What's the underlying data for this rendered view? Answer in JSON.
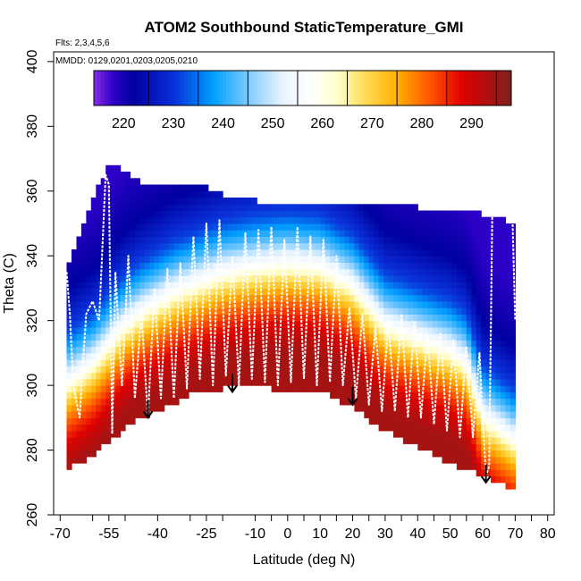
{
  "chart_data": {
    "type": "heatmap",
    "title": "ATOM2 Southbound StaticTemperature_GMI",
    "flights_note": "Flts: 2,3,4,5,6",
    "dates_note": "MMDD: 0129,0201,0203,0205,0210",
    "xlabel": "Latitude (deg N)",
    "ylabel": "Theta (C)",
    "xlim": [
      -72,
      82
    ],
    "ylim": [
      260,
      403
    ],
    "x_ticks": [
      -70,
      -60,
      -55,
      -50,
      -40,
      -30,
      -25,
      -20,
      -10,
      -5,
      0,
      5,
      10,
      15,
      20,
      25,
      30,
      35,
      40,
      45,
      50,
      55,
      60,
      65,
      70,
      75,
      80
    ],
    "x_tick_labels": [
      {
        "value": -70,
        "label": "-70"
      },
      {
        "value": -55,
        "label": "-55"
      },
      {
        "value": -40,
        "label": "-40"
      },
      {
        "value": -25,
        "label": "-25"
      },
      {
        "value": -10,
        "label": "-10"
      },
      {
        "value": 0,
        "label": "0"
      },
      {
        "value": 10,
        "label": "10"
      },
      {
        "value": 20,
        "label": "20"
      },
      {
        "value": 30,
        "label": "30"
      },
      {
        "value": 40,
        "label": "40"
      },
      {
        "value": 50,
        "label": "50"
      },
      {
        "value": 60,
        "label": "60"
      },
      {
        "value": 70,
        "label": "70"
      },
      {
        "value": 80,
        "label": "80"
      }
    ],
    "y_ticks": [
      260,
      280,
      300,
      320,
      340,
      360,
      380,
      400
    ],
    "colorbar": {
      "range": [
        214,
        298
      ],
      "tick_values": [
        220,
        230,
        240,
        250,
        260,
        270,
        280,
        290
      ],
      "color_stops": [
        {
          "t": 214,
          "c": "#8a2be2"
        },
        {
          "t": 218,
          "c": "#2d00c8"
        },
        {
          "t": 222,
          "c": "#0000a0"
        },
        {
          "t": 230,
          "c": "#0a2fd8"
        },
        {
          "t": 238,
          "c": "#00a0ff"
        },
        {
          "t": 246,
          "c": "#8fd0ff"
        },
        {
          "t": 252,
          "c": "#e8f4ff"
        },
        {
          "t": 258,
          "c": "#ffffff"
        },
        {
          "t": 263,
          "c": "#ffffcc"
        },
        {
          "t": 268,
          "c": "#ffe060"
        },
        {
          "t": 275,
          "c": "#ffb000"
        },
        {
          "t": 282,
          "c": "#ff5000"
        },
        {
          "t": 288,
          "c": "#e00000"
        },
        {
          "t": 298,
          "c": "#802020"
        }
      ]
    },
    "field": {
      "boundary": {
        "lat": [
          -68,
          -60,
          -55,
          -45,
          -40,
          -30,
          -20,
          -10,
          0,
          10,
          20,
          30,
          40,
          50,
          60,
          70
        ],
        "bottom": [
          274,
          278,
          283,
          290,
          292,
          297,
          299,
          300,
          298,
          299,
          293,
          286,
          281,
          276,
          272,
          268
        ],
        "top": [
          336,
          356,
          368,
          362,
          360,
          362,
          358,
          356,
          356,
          356,
          356,
          356,
          354,
          353,
          352,
          349
        ]
      },
      "tropopause_theta": {
        "lat": [
          -68,
          -60,
          -55,
          -50,
          -45,
          -40,
          -35,
          -30,
          -25,
          -20,
          -10,
          0,
          10,
          20,
          25,
          30,
          40,
          50,
          55,
          60,
          70
        ],
        "theta": [
          300,
          306,
          312,
          318,
          322,
          325,
          328,
          330,
          332,
          334,
          336,
          337,
          336,
          330,
          324,
          318,
          314,
          310,
          306,
          290,
          282
        ]
      },
      "levels": [
        {
          "dtheta": -26,
          "temp": 294
        },
        {
          "dtheta": -20,
          "temp": 290
        },
        {
          "dtheta": -14,
          "temp": 284
        },
        {
          "dtheta": -8,
          "temp": 276
        },
        {
          "dtheta": -3,
          "temp": 266
        },
        {
          "dtheta": 2,
          "temp": 256
        },
        {
          "dtheta": 8,
          "temp": 244
        },
        {
          "dtheta": 16,
          "temp": 232
        },
        {
          "dtheta": 30,
          "temp": 222
        },
        {
          "dtheta": 50,
          "temp": 218
        }
      ]
    },
    "flight_track": {
      "lat": [
        -68,
        -67,
        -66,
        -64,
        -62,
        -60,
        -58,
        -56,
        -55,
        -54,
        -53,
        -51,
        -49,
        -47,
        -45,
        -43,
        -41,
        -39,
        -37,
        -35,
        -33,
        -31,
        -29,
        -27,
        -25,
        -23,
        -21,
        -19,
        -17,
        -15,
        -13,
        -11,
        -9,
        -7,
        -5,
        -3,
        -1,
        1,
        3,
        5,
        7,
        9,
        11,
        13,
        15,
        17,
        19,
        21,
        23,
        25,
        27,
        29,
        31,
        33,
        35,
        37,
        39,
        41,
        43,
        45,
        47,
        49,
        51,
        53,
        55,
        57,
        59,
        61,
        62,
        63,
        65,
        67,
        69,
        70
      ],
      "theta": [
        335,
        322,
        300,
        290,
        322,
        326,
        320,
        365,
        362,
        285,
        335,
        300,
        340,
        296,
        322,
        290,
        330,
        296,
        336,
        296,
        338,
        299,
        346,
        302,
        350,
        300,
        351,
        303,
        340,
        300,
        347,
        302,
        348,
        301,
        349,
        300,
        345,
        301,
        349,
        302,
        346,
        300,
        345,
        301,
        340,
        300,
        324,
        296,
        322,
        294,
        318,
        292,
        320,
        292,
        322,
        290,
        320,
        290,
        316,
        288,
        316,
        286,
        314,
        284,
        312,
        284,
        310,
        272,
        275,
        357,
        358,
        355,
        358,
        320
      ]
    },
    "markers": [
      {
        "lat": -43,
        "theta": 290
      },
      {
        "lat": -17,
        "theta": 298
      },
      {
        "lat": 20,
        "theta": 294
      },
      {
        "lat": 61,
        "theta": 270
      }
    ]
  }
}
